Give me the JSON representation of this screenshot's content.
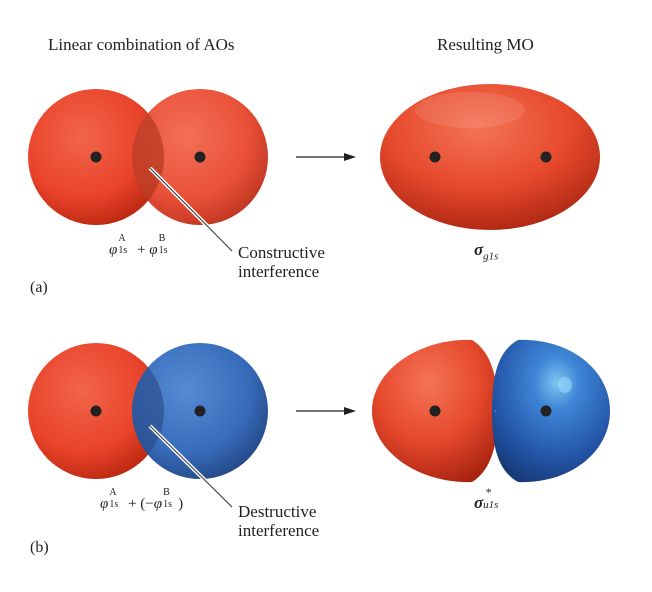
{
  "headings": {
    "left": "Linear combination of AOs",
    "right": "Resulting MO"
  },
  "panel_a": {
    "letter": "(a)",
    "formula": {
      "phi": "φ",
      "sup_a": "A",
      "sub_a": "1s",
      "plus": "+",
      "sup_b": "B",
      "sub_b": "1s"
    },
    "callout_line1": "Constructive",
    "callout_line2": "interference",
    "mo_symbol": "σ",
    "mo_subscript": "g1s"
  },
  "panel_b": {
    "letter": "(b)",
    "formula": {
      "phi": "φ",
      "sup_a": "A",
      "sub_a": "1s",
      "plus": "+",
      "open": "(−",
      "sup_b": "B",
      "sub_b": "1s",
      "close": ")"
    },
    "callout_line1": "Destructive",
    "callout_line2": "interference",
    "mo_symbol": "σ",
    "mo_subscript": "u1s",
    "mo_superscript": "*"
  },
  "colors": {
    "orbital_red": "#e8432a",
    "orbital_red_dark": "#b8260f",
    "orbital_blue": "#2f66b8",
    "orbital_blue_dark": "#1b3f80",
    "overlap_red": "#a83a22",
    "overlap_blue": "#2a4f8c",
    "nucleus": "#222222",
    "text": "#231f20"
  }
}
